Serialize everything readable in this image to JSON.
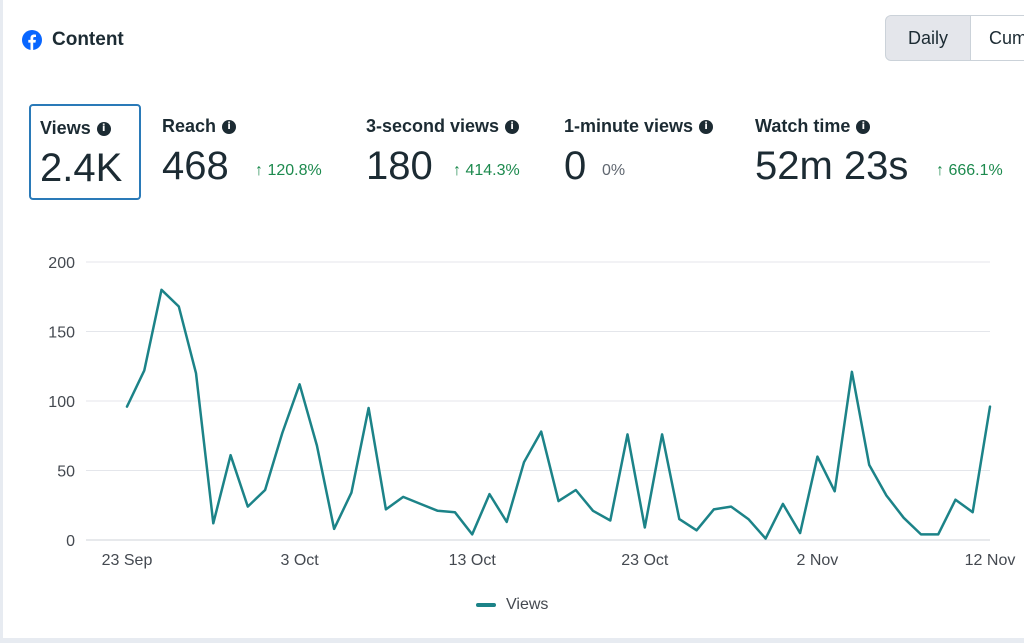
{
  "header": {
    "title": "Content",
    "icon": "facebook-icon"
  },
  "toggle": {
    "daily": "Daily",
    "cumulative": "Cum"
  },
  "metrics": [
    {
      "label": "Views",
      "value": "2.4K",
      "change": ""
    },
    {
      "label": "Reach",
      "value": "468",
      "change": "↑ 120.8%"
    },
    {
      "label": "3-second views",
      "value": "180",
      "change": "↑ 414.3%"
    },
    {
      "label": "1-minute views",
      "value": "0",
      "change": "0%"
    },
    {
      "label": "Watch time",
      "value": "52m 23s",
      "change": "↑ 666.1%"
    }
  ],
  "colors": {
    "line": "#1c8388",
    "up": "#1d8a4e",
    "selected_border": "#2a7ab8"
  },
  "chart_data": {
    "type": "line",
    "title": "",
    "xlabel": "",
    "ylabel": "",
    "ylim": [
      0,
      200
    ],
    "yticks": [
      0,
      50,
      100,
      150,
      200
    ],
    "xtick_labels": [
      {
        "index": 0,
        "label": "23 Sep"
      },
      {
        "index": 10,
        "label": "3 Oct"
      },
      {
        "index": 20,
        "label": "13 Oct"
      },
      {
        "index": 30,
        "label": "23 Oct"
      },
      {
        "index": 40,
        "label": "2 Nov"
      },
      {
        "index": 50,
        "label": "12 Nov"
      }
    ],
    "series": [
      {
        "name": "Views",
        "values": [
          96,
          122,
          180,
          168,
          120,
          12,
          61,
          24,
          36,
          77,
          112,
          68,
          8,
          34,
          95,
          22,
          31,
          26,
          21,
          20,
          4,
          33,
          13,
          56,
          78,
          28,
          36,
          21,
          14,
          76,
          9,
          76,
          15,
          7,
          22,
          24,
          15,
          1,
          26,
          5,
          60,
          35,
          121,
          54,
          32,
          16,
          4,
          4,
          29,
          20,
          96
        ]
      }
    ],
    "legend": [
      "Views"
    ],
    "legend_position": "bottom-center",
    "grid": true
  }
}
